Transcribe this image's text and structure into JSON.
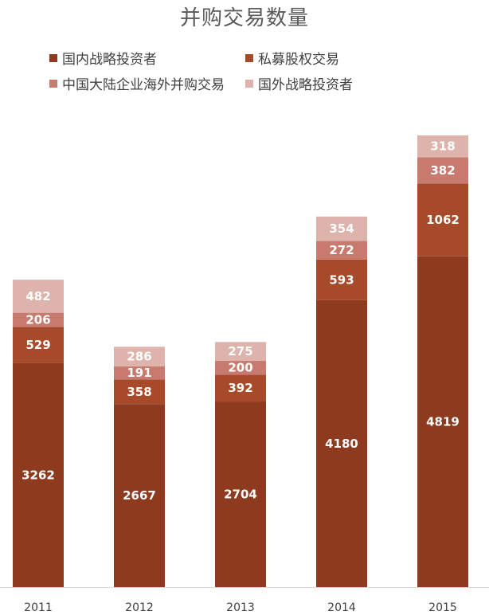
{
  "chart_data": {
    "type": "bar",
    "stacked": true,
    "title": "并购交易数量",
    "categories": [
      "2011",
      "2012",
      "2013",
      "2014",
      "2015"
    ],
    "series": [
      {
        "name": "国内战略投资者",
        "color": "#8e3a1e",
        "values": [
          3262,
          2667,
          2704,
          4180,
          4819
        ]
      },
      {
        "name": "私募股权交易",
        "color": "#a64a2a",
        "values": [
          529,
          358,
          392,
          593,
          1062
        ]
      },
      {
        "name": "中国大陆企业海外并购交易",
        "color": "#c87a6e",
        "values": [
          206,
          191,
          200,
          272,
          382
        ]
      },
      {
        "name": "国外战略投资者",
        "color": "#ddb3ab",
        "values": [
          482,
          286,
          275,
          354,
          318
        ]
      }
    ],
    "legend_position": "top",
    "grid": false,
    "ylim": [
      0,
      6581
    ]
  }
}
